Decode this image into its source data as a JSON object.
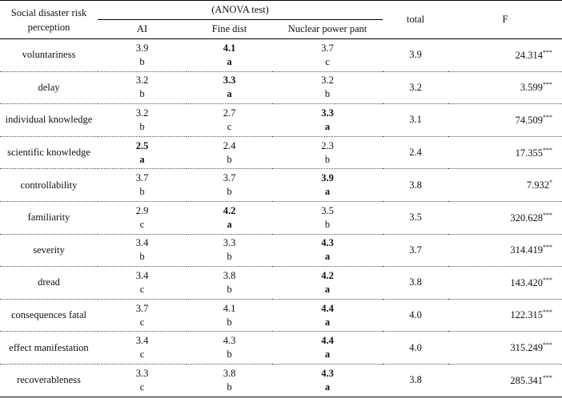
{
  "table": {
    "header": {
      "row_label": "Social disaster risk perception",
      "group_title": "(ANOVA test)",
      "groups": [
        "AI",
        "Fine dist",
        "Nuclear power pant"
      ],
      "total": "total",
      "f": "F"
    },
    "rows": [
      {
        "label": "voluntariness",
        "cells": [
          {
            "value": "3.9",
            "group": "b",
            "bold": false
          },
          {
            "value": "4.1",
            "group": "a",
            "bold": true
          },
          {
            "value": "3.7",
            "group": "c",
            "bold": false
          }
        ],
        "total": "3.9",
        "f": "24.314",
        "sig": "***"
      },
      {
        "label": "delay",
        "cells": [
          {
            "value": "3.2",
            "group": "b",
            "bold": false
          },
          {
            "value": "3.3",
            "group": "a",
            "bold": true
          },
          {
            "value": "3.2",
            "group": "b",
            "bold": false
          }
        ],
        "total": "3.2",
        "f": "3.599",
        "sig": "***"
      },
      {
        "label": "individual knowledge",
        "cells": [
          {
            "value": "3.2",
            "group": "b",
            "bold": false
          },
          {
            "value": "2.7",
            "group": "c",
            "bold": false
          },
          {
            "value": "3.3",
            "group": "a",
            "bold": true
          }
        ],
        "total": "3.1",
        "f": "74.509",
        "sig": "***"
      },
      {
        "label": "scientific knowledge",
        "cells": [
          {
            "value": "2.5",
            "group": "a",
            "bold": true
          },
          {
            "value": "2.4",
            "group": "b",
            "bold": false
          },
          {
            "value": "2.3",
            "group": "b",
            "bold": false
          }
        ],
        "total": "2.4",
        "f": "17.355",
        "sig": "***"
      },
      {
        "label": "controllability",
        "cells": [
          {
            "value": "3.7",
            "group": "b",
            "bold": false
          },
          {
            "value": "3.7",
            "group": "b",
            "bold": false
          },
          {
            "value": "3.9",
            "group": "a",
            "bold": true
          }
        ],
        "total": "3.8",
        "f": "7.932",
        "sig": "*"
      },
      {
        "label": "familiarity",
        "cells": [
          {
            "value": "2.9",
            "group": "c",
            "bold": false
          },
          {
            "value": "4.2",
            "group": "a",
            "bold": true
          },
          {
            "value": "3.5",
            "group": "b",
            "bold": false
          }
        ],
        "total": "3.5",
        "f": "320.628",
        "sig": "***"
      },
      {
        "label": "severity",
        "cells": [
          {
            "value": "3.4",
            "group": "b",
            "bold": false
          },
          {
            "value": "3.3",
            "group": "b",
            "bold": false
          },
          {
            "value": "4.3",
            "group": "a",
            "bold": true
          }
        ],
        "total": "3.7",
        "f": "314.419",
        "sig": "***"
      },
      {
        "label": "dread",
        "cells": [
          {
            "value": "3.4",
            "group": "c",
            "bold": false
          },
          {
            "value": "3.8",
            "group": "b",
            "bold": false
          },
          {
            "value": "4.2",
            "group": "a",
            "bold": true
          }
        ],
        "total": "3.8",
        "f": "143.420",
        "sig": "***"
      },
      {
        "label": "consequences fatal",
        "cells": [
          {
            "value": "3.7",
            "group": "c",
            "bold": false
          },
          {
            "value": "4.1",
            "group": "b",
            "bold": false
          },
          {
            "value": "4.4",
            "group": "a",
            "bold": true
          }
        ],
        "total": "4.0",
        "f": "122.315",
        "sig": "***"
      },
      {
        "label": "effect manifestation",
        "cells": [
          {
            "value": "3.4",
            "group": "c",
            "bold": false
          },
          {
            "value": "4.3",
            "group": "b",
            "bold": false
          },
          {
            "value": "4.4",
            "group": "a",
            "bold": true
          }
        ],
        "total": "4.0",
        "f": "315.249",
        "sig": "***"
      },
      {
        "label": "recoverableness",
        "cells": [
          {
            "value": "3.3",
            "group": "c",
            "bold": false
          },
          {
            "value": "3.8",
            "group": "b",
            "bold": false
          },
          {
            "value": "4.3",
            "group": "a",
            "bold": true
          }
        ],
        "total": "3.8",
        "f": "285.341",
        "sig": "***"
      }
    ]
  }
}
